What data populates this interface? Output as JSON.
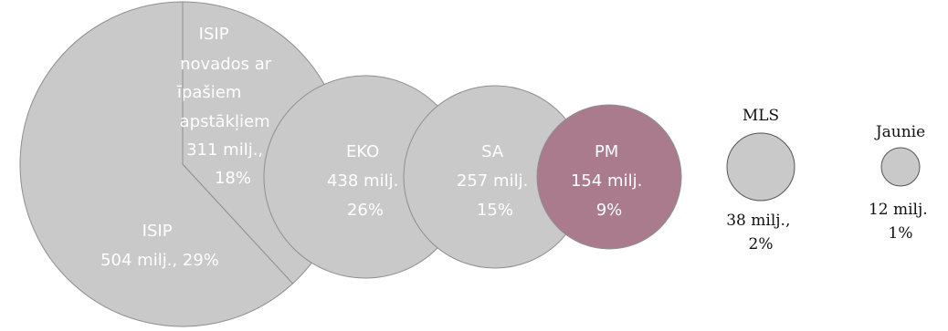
{
  "chart_data": {
    "type": "bubble",
    "items": [
      {
        "name": "ISIP",
        "lines": [
          "ISIP",
          "504 milj., 29%"
        ],
        "value_milj": 504,
        "percent": 29,
        "color": "#c9c9c9"
      },
      {
        "name": "ISIP novados ar īpašiem apstākļiem",
        "lines": [
          "ISIP",
          "novados ar",
          "īpašiem",
          "apstākļiem",
          "311 milj.,",
          "18%"
        ],
        "value_milj": 311,
        "percent": 18,
        "color": "#c9c9c9"
      },
      {
        "name": "EKO",
        "lines": [
          "EKO",
          "438 milj.",
          "26%"
        ],
        "value_milj": 438,
        "percent": 26,
        "color": "#c9c9c9"
      },
      {
        "name": "SA",
        "lines": [
          "SA",
          "257 milj.",
          "15%"
        ],
        "value_milj": 257,
        "percent": 15,
        "color": "#c9c9c9"
      },
      {
        "name": "PM",
        "lines": [
          "PM",
          "154 milj.",
          "9%"
        ],
        "value_milj": 154,
        "percent": 9,
        "color": "#a97b8d"
      },
      {
        "name": "MLS",
        "top": "MLS",
        "bottom": [
          "38 milj.,",
          "2%"
        ],
        "value_milj": 38,
        "percent": 2,
        "color": "#c9c9c9"
      },
      {
        "name": "Jaunie",
        "top": "Jaunie",
        "bottom": [
          "12 milj.",
          "1%"
        ],
        "value_milj": 12,
        "percent": 1,
        "color": "#c9c9c9"
      }
    ]
  }
}
